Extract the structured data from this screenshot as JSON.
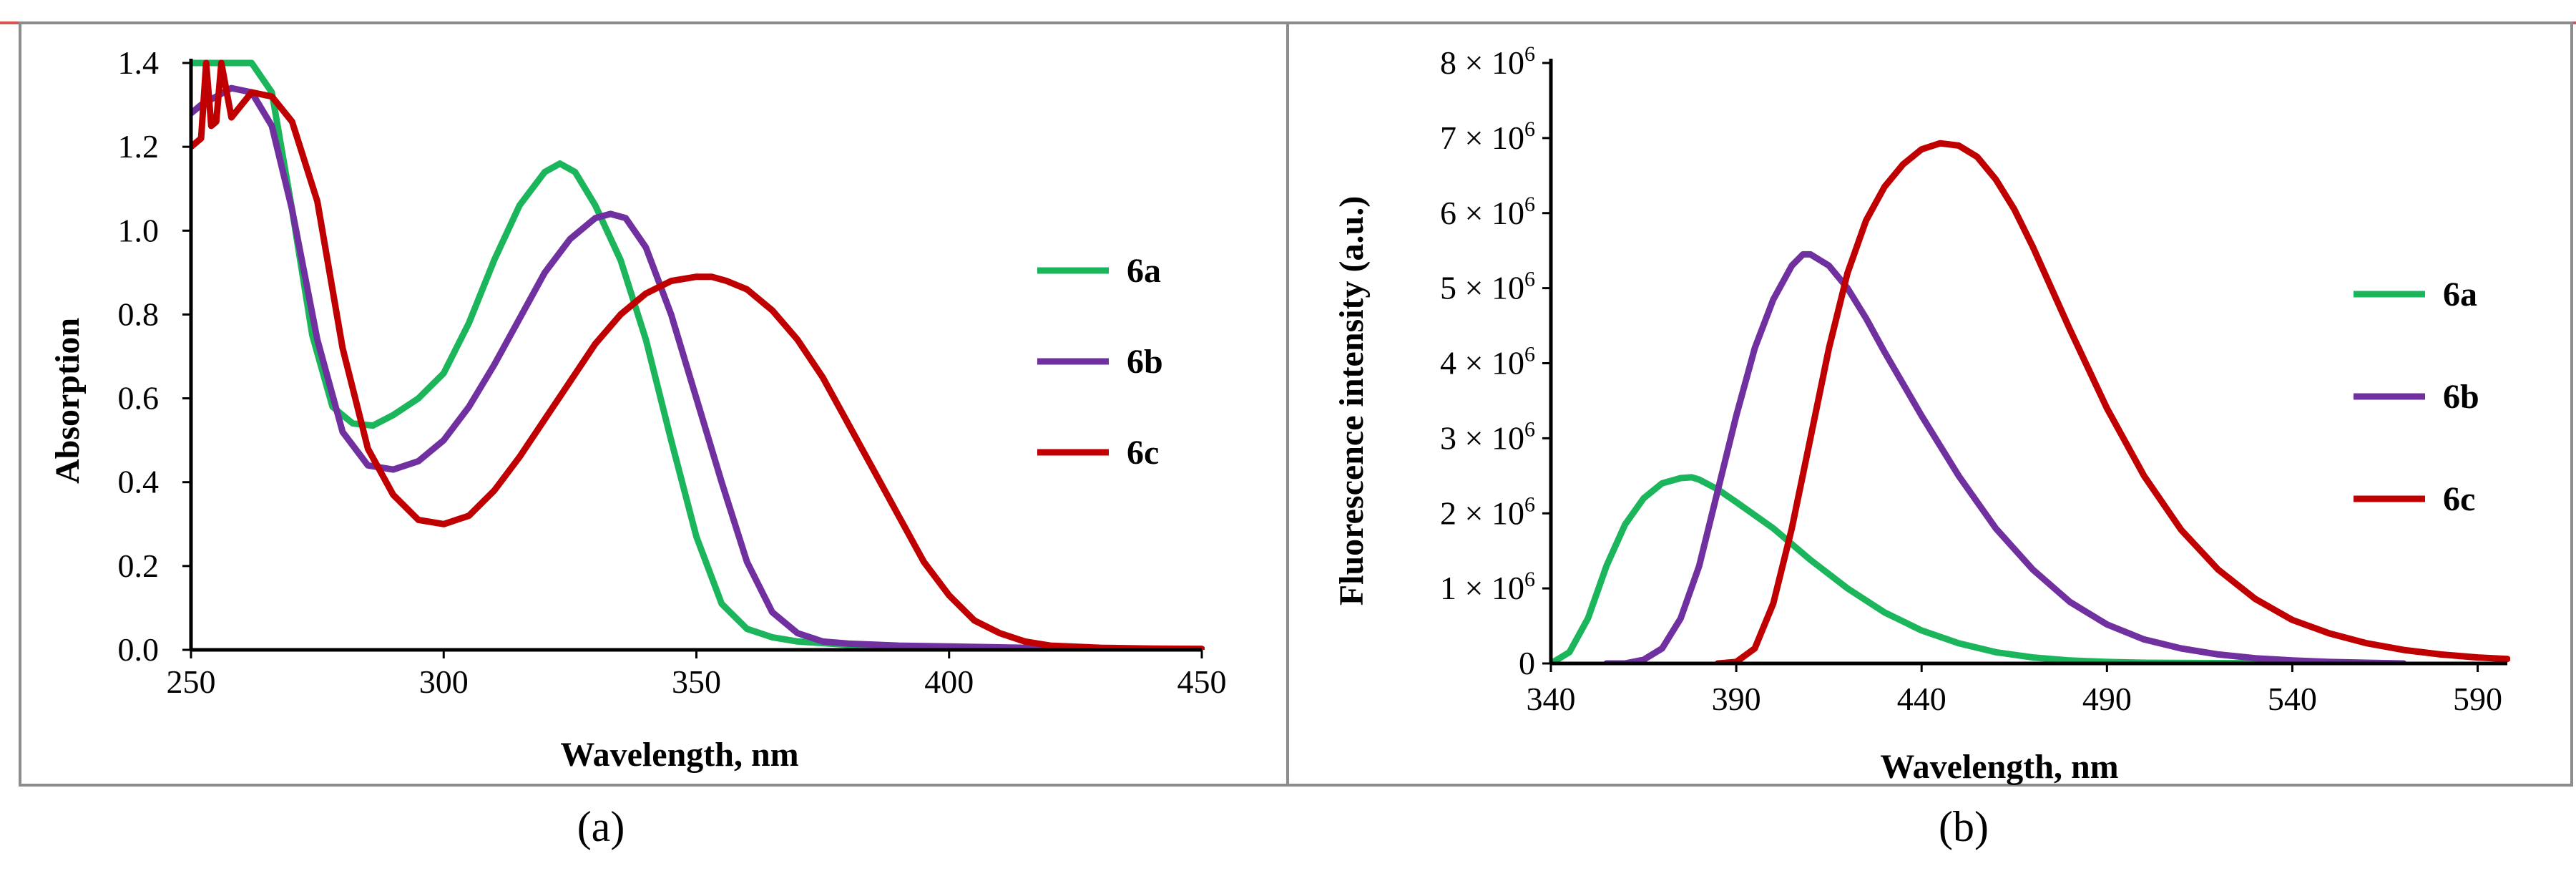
{
  "colors": {
    "series_6a": "#1bb55c",
    "series_6b": "#7030a0",
    "series_6c": "#c00000",
    "frame_top": "#d9534f",
    "frame": "#8c8c8c"
  },
  "chart_data": [
    {
      "id": "a",
      "type": "line",
      "caption": "(a)",
      "xlabel": "Wavelength, nm",
      "ylabel": "Absorption",
      "xlim": [
        250,
        450
      ],
      "ylim": [
        0,
        1.4
      ],
      "x_ticks": [
        250,
        300,
        350,
        400,
        450
      ],
      "y_ticks": [
        0,
        0.2,
        0.4,
        0.6,
        0.8,
        1.0,
        1.2,
        1.4
      ],
      "x_tick_labels": [
        "250",
        "300",
        "350",
        "400",
        "450"
      ],
      "y_tick_labels": [
        "0.0",
        "0.2",
        "0.4",
        "0.6",
        "0.8",
        "1.0",
        "1.2",
        "1.4"
      ],
      "legend": [
        "6a",
        "6b",
        "6c"
      ],
      "series": [
        {
          "name": "6a",
          "x": [
            250,
            255,
            258,
            262,
            266,
            270,
            274,
            278,
            282,
            286,
            290,
            295,
            300,
            305,
            310,
            315,
            320,
            323,
            326,
            330,
            335,
            340,
            345,
            350,
            355,
            360,
            365,
            370,
            380,
            390,
            400,
            420,
            450
          ],
          "y": [
            1.4,
            1.4,
            1.4,
            1.4,
            1.33,
            1.05,
            0.75,
            0.58,
            0.54,
            0.535,
            0.56,
            0.6,
            0.66,
            0.78,
            0.93,
            1.06,
            1.14,
            1.16,
            1.14,
            1.06,
            0.93,
            0.74,
            0.5,
            0.27,
            0.11,
            0.05,
            0.03,
            0.02,
            0.012,
            0.008,
            0.005,
            0.003,
            0.002
          ]
        },
        {
          "name": "6b",
          "x": [
            250,
            252,
            255,
            258,
            262,
            266,
            270,
            275,
            280,
            285,
            290,
            295,
            300,
            305,
            310,
            315,
            320,
            325,
            330,
            333,
            336,
            340,
            345,
            350,
            355,
            360,
            365,
            370,
            375,
            380,
            390,
            400,
            420,
            450
          ],
          "y": [
            1.28,
            1.3,
            1.32,
            1.34,
            1.33,
            1.25,
            1.05,
            0.74,
            0.52,
            0.44,
            0.43,
            0.45,
            0.5,
            0.58,
            0.68,
            0.79,
            0.9,
            0.98,
            1.03,
            1.04,
            1.03,
            0.96,
            0.8,
            0.6,
            0.4,
            0.21,
            0.09,
            0.04,
            0.02,
            0.015,
            0.01,
            0.008,
            0.004,
            0.002
          ]
        },
        {
          "name": "6c",
          "x": [
            250,
            252,
            253,
            254,
            255,
            256,
            258,
            262,
            266,
            270,
            275,
            280,
            285,
            290,
            295,
            300,
            305,
            310,
            315,
            320,
            325,
            330,
            335,
            340,
            345,
            350,
            353,
            356,
            360,
            365,
            370,
            375,
            380,
            385,
            390,
            395,
            400,
            405,
            410,
            415,
            420,
            430,
            440,
            450
          ],
          "y": [
            1.2,
            1.22,
            1.4,
            1.25,
            1.26,
            1.4,
            1.27,
            1.33,
            1.32,
            1.26,
            1.07,
            0.72,
            0.48,
            0.37,
            0.31,
            0.3,
            0.32,
            0.38,
            0.46,
            0.55,
            0.64,
            0.73,
            0.8,
            0.85,
            0.88,
            0.89,
            0.89,
            0.88,
            0.86,
            0.81,
            0.74,
            0.65,
            0.54,
            0.43,
            0.32,
            0.21,
            0.13,
            0.07,
            0.04,
            0.02,
            0.01,
            0.005,
            0.003,
            0.002
          ]
        }
      ]
    },
    {
      "id": "b",
      "type": "line",
      "caption": "(b)",
      "xlabel": "Wavelength, nm",
      "ylabel": "Fluorescence  intensity  (a.u.)",
      "xlim": [
        340,
        598
      ],
      "ylim": [
        0,
        8
      ],
      "y_unit": "× 10^6",
      "x_ticks": [
        340,
        390,
        440,
        490,
        540,
        590
      ],
      "x_tick_labels": [
        "340",
        "390",
        "440",
        "490",
        "540",
        "590"
      ],
      "y_ticks": [
        0,
        1,
        2,
        3,
        4,
        5,
        6,
        7,
        8
      ],
      "y_tick_labels": [
        "0",
        "1 × 10",
        "2 × 10",
        "3 × 10",
        "4 × 10",
        "5 × 10",
        "6 × 10",
        "7 × 10",
        "8 × 10"
      ],
      "y_tick_exponent": "6",
      "legend": [
        "6a",
        "6b",
        "6c"
      ],
      "series": [
        {
          "name": "6a",
          "x": [
            340,
            345,
            350,
            355,
            360,
            365,
            370,
            375,
            378,
            380,
            385,
            390,
            400,
            410,
            420,
            430,
            440,
            450,
            460,
            470,
            480,
            490,
            500,
            520,
            540,
            570
          ],
          "y": [
            0.0,
            0.15,
            0.6,
            1.3,
            1.85,
            2.2,
            2.4,
            2.47,
            2.48,
            2.45,
            2.32,
            2.15,
            1.8,
            1.38,
            1.0,
            0.68,
            0.44,
            0.27,
            0.15,
            0.08,
            0.04,
            0.02,
            0.01,
            0.005,
            0.002,
            0.0
          ]
        },
        {
          "name": "6b",
          "x": [
            355,
            360,
            365,
            370,
            375,
            380,
            385,
            390,
            395,
            400,
            405,
            408,
            410,
            415,
            420,
            425,
            430,
            440,
            450,
            460,
            470,
            480,
            490,
            500,
            510,
            520,
            530,
            540,
            550,
            560,
            570
          ],
          "y": [
            0.0,
            0.0,
            0.05,
            0.2,
            0.6,
            1.3,
            2.3,
            3.3,
            4.2,
            4.85,
            5.3,
            5.45,
            5.45,
            5.3,
            5.0,
            4.6,
            4.15,
            3.3,
            2.5,
            1.8,
            1.25,
            0.82,
            0.52,
            0.32,
            0.2,
            0.12,
            0.07,
            0.04,
            0.02,
            0.01,
            0.0
          ]
        },
        {
          "name": "6c",
          "x": [
            385,
            390,
            395,
            400,
            405,
            410,
            415,
            420,
            425,
            430,
            435,
            440,
            445,
            450,
            455,
            460,
            465,
            470,
            480,
            490,
            500,
            510,
            520,
            530,
            540,
            550,
            560,
            570,
            580,
            590,
            598
          ],
          "y": [
            0.0,
            0.02,
            0.2,
            0.8,
            1.8,
            3.0,
            4.2,
            5.2,
            5.9,
            6.35,
            6.65,
            6.85,
            6.93,
            6.9,
            6.75,
            6.45,
            6.05,
            5.55,
            4.45,
            3.4,
            2.5,
            1.78,
            1.25,
            0.86,
            0.58,
            0.4,
            0.27,
            0.18,
            0.12,
            0.08,
            0.06
          ]
        }
      ]
    }
  ]
}
